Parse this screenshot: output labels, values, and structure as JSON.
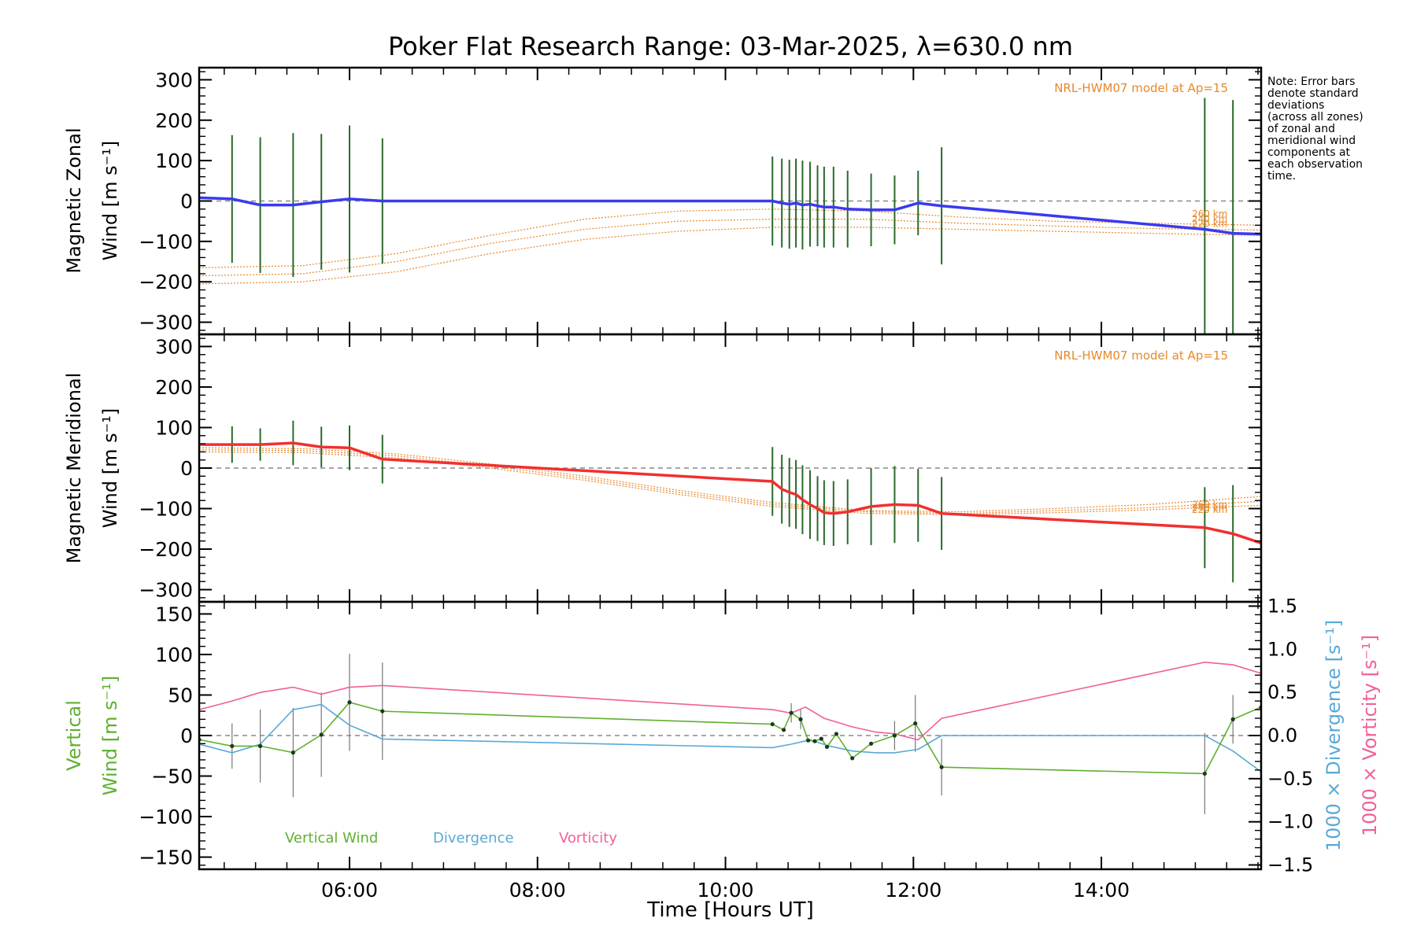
{
  "title": "Poker Flat Research Range: 03-Mar-2025, λ=630.0 nm",
  "note": [
    "Note: Error bars",
    "denote standard",
    "deviations",
    "(across all zones)",
    "of zonal and",
    "meridional wind",
    "components at",
    "each observation",
    "time."
  ],
  "xlabel": "Time [Hours UT]",
  "xlim": [
    4.4,
    15.7
  ],
  "xticks": [
    6,
    8,
    10,
    12,
    14
  ],
  "xtick_labels": [
    "06:00",
    "08:00",
    "10:00",
    "12:00",
    "14:00"
  ],
  "colors": {
    "zonal": "#3a3af0",
    "meridional": "#f03030",
    "model": "#e8882a",
    "vertical": "#5fb030",
    "divergence": "#5aa8d8",
    "vorticity": "#f0609a",
    "errbar": "#2a6a2a",
    "zero": "#888888"
  },
  "chart_data": [
    {
      "type": "line",
      "panel": "zonal",
      "ylabel": [
        "Magnetic Zonal",
        "Wind [m s⁻¹]"
      ],
      "ylim": [
        -330,
        330
      ],
      "yticks": [
        -300,
        -200,
        -100,
        0,
        100,
        200,
        300
      ],
      "model_label": "NRL-HWM07 model at Ap=15",
      "model_alt_labels": [
        "260 km",
        "240 km",
        "220 km"
      ],
      "wind": {
        "x": [
          4.4,
          4.75,
          5.05,
          5.4,
          5.7,
          6.0,
          6.35,
          10.5,
          10.6,
          10.68,
          10.75,
          10.82,
          10.9,
          10.98,
          11.05,
          11.15,
          11.3,
          11.55,
          11.8,
          12.05,
          12.3,
          15.1,
          15.4,
          15.7
        ],
        "y": [
          8,
          5,
          -10,
          -10,
          -2,
          5,
          0,
          0,
          -5,
          -8,
          -5,
          -10,
          -8,
          -12,
          -15,
          -15,
          -20,
          -22,
          -22,
          -5,
          -12,
          -70,
          -80,
          -82
        ],
        "err": [
          0,
          158,
          168,
          178,
          168,
          182,
          155,
          110,
          110,
          110,
          110,
          110,
          105,
          100,
          100,
          100,
          95,
          90,
          85,
          80,
          145,
          325,
          330,
          0
        ]
      },
      "model_x": [
        4.4,
        5.5,
        6.5,
        7.5,
        8.5,
        9.5,
        10.5,
        11.5,
        12.5,
        13.5,
        14.5,
        15.7
      ],
      "models": [
        {
          "alt": "260 km",
          "y": [
            -165,
            -160,
            -130,
            -85,
            -45,
            -25,
            -20,
            -25,
            -40,
            -50,
            -55,
            -60
          ]
        },
        {
          "alt": "240 km",
          "y": [
            -185,
            -180,
            -150,
            -105,
            -70,
            -50,
            -45,
            -45,
            -55,
            -62,
            -68,
            -72
          ]
        },
        {
          "alt": "220 km",
          "y": [
            -205,
            -200,
            -175,
            -130,
            -95,
            -75,
            -65,
            -65,
            -70,
            -75,
            -80,
            -85
          ]
        }
      ]
    },
    {
      "type": "line",
      "panel": "meridional",
      "ylabel": [
        "Magnetic Meridional",
        "Wind [m s⁻¹]"
      ],
      "ylim": [
        -330,
        330
      ],
      "yticks": [
        -300,
        -200,
        -100,
        0,
        100,
        200,
        300
      ],
      "model_label": "NRL-HWM07 model at Ap=15",
      "model_alt_labels": [
        "260 km",
        "240 km",
        "220 km"
      ],
      "wind": {
        "x": [
          4.4,
          4.75,
          5.05,
          5.4,
          5.7,
          6.0,
          6.35,
          10.5,
          10.6,
          10.68,
          10.75,
          10.82,
          10.9,
          10.98,
          11.05,
          11.15,
          11.3,
          11.55,
          11.8,
          12.05,
          12.3,
          15.1,
          15.4,
          15.7
        ],
        "y": [
          58,
          58,
          58,
          62,
          52,
          50,
          22,
          -33,
          -52,
          -60,
          -65,
          -78,
          -90,
          -100,
          -110,
          -112,
          -108,
          -95,
          -90,
          -92,
          -112,
          -147,
          -162,
          -185
        ],
        "err": [
          0,
          45,
          40,
          55,
          50,
          55,
          60,
          85,
          85,
          85,
          85,
          85,
          85,
          80,
          80,
          80,
          80,
          95,
          95,
          90,
          90,
          100,
          120,
          0
        ]
      },
      "model_x": [
        4.4,
        5.5,
        6.5,
        7.5,
        8.5,
        9.5,
        10.5,
        11.5,
        12.5,
        13.5,
        14.5,
        15.7
      ],
      "models": [
        {
          "alt": "260 km",
          "y": [
            50,
            48,
            35,
            10,
            -20,
            -55,
            -85,
            -105,
            -108,
            -100,
            -90,
            -70
          ]
        },
        {
          "alt": "240 km",
          "y": [
            45,
            43,
            30,
            5,
            -25,
            -60,
            -90,
            -108,
            -112,
            -105,
            -98,
            -82
          ]
        },
        {
          "alt": "220 km",
          "y": [
            40,
            38,
            25,
            0,
            -30,
            -65,
            -95,
            -112,
            -115,
            -110,
            -103,
            -92
          ]
        }
      ]
    },
    {
      "type": "line",
      "panel": "vertical",
      "ylabel": [
        "Vertical",
        "Wind [m s⁻¹]"
      ],
      "ylabel_right_div": "1000 × Divergence [s⁻¹]",
      "ylabel_right_vort": "1000 × Vorticity [s⁻¹]",
      "ylim": [
        -165,
        165
      ],
      "yticks": [
        -150,
        -100,
        -50,
        0,
        50,
        100,
        150
      ],
      "ylim_right": [
        -1.55,
        1.55
      ],
      "yticks_right": [
        -1.5,
        -1.0,
        -0.5,
        0.0,
        0.5,
        1.0,
        1.5
      ],
      "ytick_labels_right": [
        "−1.5",
        "−1.0",
        "−0.5",
        "0.0",
        "0.5",
        "1.0",
        "1.5"
      ],
      "legend": [
        "Vertical Wind",
        "Divergence",
        "Vorticity"
      ],
      "vertical": {
        "x": [
          4.4,
          4.75,
          5.05,
          5.4,
          5.7,
          6.0,
          6.35,
          10.5,
          10.62,
          10.7,
          10.8,
          10.88,
          10.95,
          11.02,
          11.08,
          11.18,
          11.35,
          11.55,
          11.8,
          12.02,
          12.3,
          15.1,
          15.4,
          15.7
        ],
        "y": [
          -5,
          -13,
          -13,
          -21,
          1,
          41,
          30,
          14,
          7,
          28,
          20,
          -6,
          -7,
          -4,
          -14,
          2,
          -28,
          -10,
          0,
          15,
          -39,
          -47,
          20,
          35
        ],
        "err": [
          0,
          28,
          45,
          55,
          52,
          60,
          60,
          0,
          0,
          12,
          12,
          0,
          0,
          0,
          0,
          0,
          0,
          0,
          18,
          35,
          35,
          50,
          30,
          0
        ]
      },
      "divergence": {
        "x": [
          4.4,
          4.75,
          5.05,
          5.4,
          5.7,
          6.0,
          6.35,
          10.5,
          10.7,
          10.9,
          11.1,
          11.35,
          11.6,
          11.8,
          12.05,
          12.3,
          15.1,
          15.4,
          15.7
        ],
        "y": [
          -0.1,
          -0.2,
          -0.1,
          0.3,
          0.36,
          0.12,
          -0.04,
          -0.14,
          -0.1,
          -0.05,
          -0.12,
          -0.18,
          -0.2,
          -0.2,
          -0.16,
          0.0,
          0.0,
          -0.18,
          -0.42
        ]
      },
      "vorticity": {
        "x": [
          4.4,
          4.75,
          5.05,
          5.4,
          5.7,
          6.0,
          6.35,
          10.5,
          10.7,
          10.85,
          11.05,
          11.35,
          11.6,
          11.8,
          12.05,
          12.3,
          15.1,
          15.4,
          15.7
        ],
        "y": [
          0.3,
          0.4,
          0.5,
          0.56,
          0.48,
          0.56,
          0.58,
          0.3,
          0.26,
          0.33,
          0.2,
          0.1,
          0.04,
          0.02,
          -0.05,
          0.2,
          0.85,
          0.82,
          0.72
        ]
      }
    }
  ]
}
